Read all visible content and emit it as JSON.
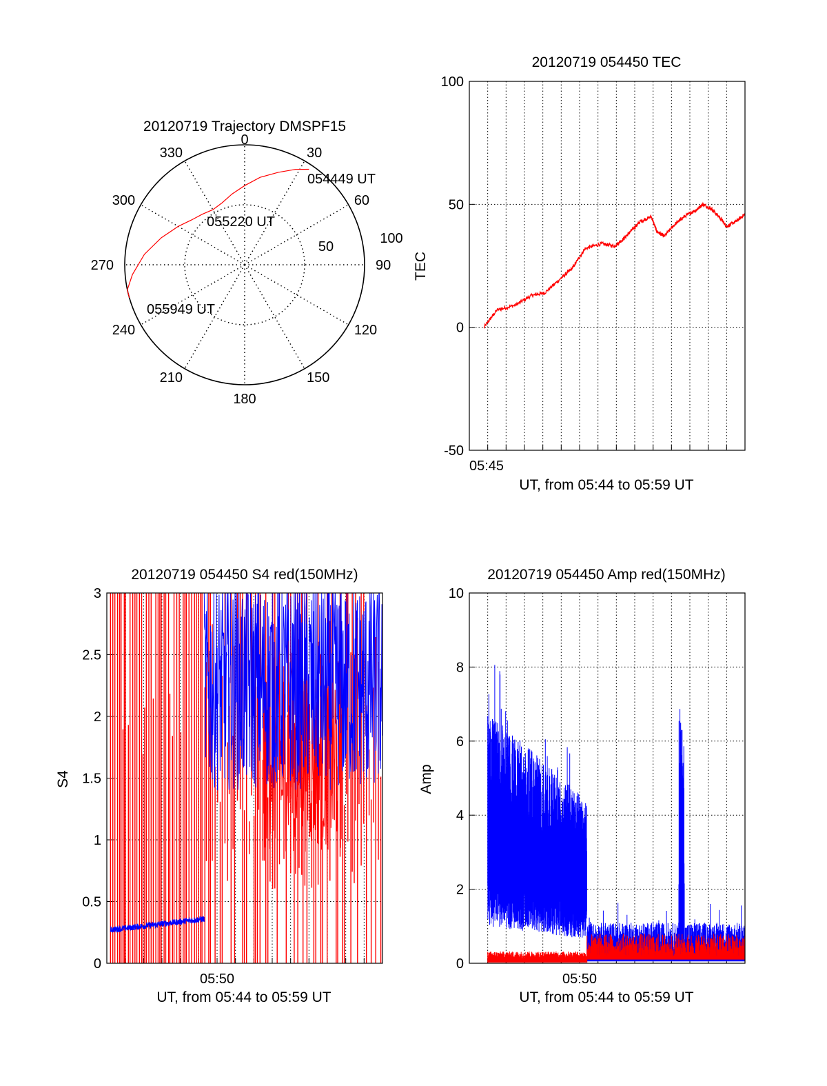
{
  "colors": {
    "red": "#ff0000",
    "blue": "#0000ff",
    "axis": "#000000",
    "grid": "#000000"
  },
  "chart_data": [
    {
      "type": "polar",
      "title": "20120719 Trajectory DMSPF15",
      "angle_labels": [
        "0",
        "30",
        "60",
        "90",
        "120",
        "150",
        "180",
        "210",
        "240",
        "270",
        "300",
        "330"
      ],
      "radial_labels": [
        "50",
        "100"
      ],
      "rlim": [
        0,
        100
      ],
      "series": [
        {
          "color": "red",
          "points": [
            {
              "az": 34,
              "r": 96
            },
            {
              "az": 28,
              "r": 90
            },
            {
              "az": 20,
              "r": 82
            },
            {
              "az": 10,
              "r": 74
            },
            {
              "az": 0,
              "r": 66
            },
            {
              "az": -10,
              "r": 60
            },
            {
              "az": -20,
              "r": 55
            },
            {
              "az": -30,
              "r": 53
            },
            {
              "az": -40,
              "r": 55
            },
            {
              "az": -50,
              "r": 58
            },
            {
              "az": -60,
              "r": 64
            },
            {
              "az": -72,
              "r": 73
            },
            {
              "az": -84,
              "r": 84
            },
            {
              "az": -95,
              "r": 94
            },
            {
              "az": -102,
              "r": 100
            },
            {
              "az": -106,
              "r": 104
            }
          ]
        }
      ],
      "annotations": [
        "054449 UT",
        "055220 UT",
        "055949 UT"
      ]
    },
    {
      "type": "line",
      "title": "20120719 054450 TEC",
      "ylabel": "TEC",
      "xlabel": "UT, from 05:44 to 05:59 UT",
      "xlim": [
        0,
        15
      ],
      "ylim": [
        -50,
        100
      ],
      "yticks": [
        "100",
        "50",
        "0",
        "-50"
      ],
      "xtick_labels": [
        {
          "x": 1,
          "label": "05:45"
        }
      ],
      "grid": true,
      "series": [
        {
          "color": "red",
          "x": [
            0.8,
            1.5,
            2.5,
            3.4,
            4.1,
            5.0,
            5.6,
            6.3,
            7.2,
            7.9,
            8.4,
            8.9,
            9.3,
            9.9,
            10.2,
            10.6,
            11.2,
            11.7,
            12.4,
            12.7,
            13.2,
            13.7,
            14.0,
            14.5,
            15.0
          ],
          "y": [
            0,
            7,
            9,
            13,
            14,
            20,
            24,
            32,
            34,
            33,
            36,
            40,
            43,
            45,
            39,
            37,
            42,
            45,
            48,
            50,
            48,
            44,
            41,
            43,
            46
          ]
        }
      ]
    },
    {
      "type": "line",
      "title": "20120719 054450 S4 red(150MHz)",
      "ylabel": "S4",
      "xlabel": "UT, from 05:44 to 05:59 UT",
      "xlim": [
        0,
        15
      ],
      "ylim": [
        0,
        3
      ],
      "yticks": [
        "3",
        "2.5",
        "2",
        "1.5",
        "1",
        "0.5",
        "0"
      ],
      "xtick_labels": [
        {
          "x": 6,
          "label": "05:50"
        }
      ],
      "grid": true,
      "series": [
        {
          "color": "blue",
          "segment": "early",
          "x_start": 0.2,
          "x_end": 5.3,
          "y_start": 0.27,
          "y_end": 0.37
        },
        {
          "color": "blue",
          "segment": "dense",
          "x_start": 5.3,
          "x_end": 15.0,
          "y_min": 1.2,
          "y_max": 3.0
        },
        {
          "color": "red",
          "segment": "spikes",
          "x_start": 0.2,
          "x_end": 15.0,
          "y_min": 0,
          "y_max": 3.0
        }
      ]
    },
    {
      "type": "line",
      "title": "20120719 054450 Amp red(150MHz)",
      "ylabel": "Amp",
      "xlabel": "UT, from 05:44 to 05:59 UT",
      "xlim": [
        0,
        15
      ],
      "ylim": [
        0,
        10
      ],
      "yticks": [
        "10",
        "8",
        "6",
        "4",
        "2",
        "0"
      ],
      "xtick_labels": [
        {
          "x": 6,
          "label": "05:50"
        }
      ],
      "grid": true,
      "series": [
        {
          "color": "blue",
          "segment": "high",
          "x_start": 1.0,
          "x_end": 6.4,
          "y_low": 1.5,
          "y_high": 6.5
        },
        {
          "color": "blue",
          "segment": "low",
          "x_start": 6.4,
          "x_end": 15.0,
          "y_low": 0.1,
          "y_high": 1.0
        },
        {
          "color": "blue",
          "segment": "burst",
          "x_start": 11.4,
          "x_end": 11.7,
          "y_low": 0.5,
          "y_high": 7.0
        },
        {
          "color": "red",
          "segment": "low",
          "x_start": 1.0,
          "x_end": 15.0,
          "y_low": 0.05,
          "y_high": 0.7
        }
      ]
    }
  ]
}
